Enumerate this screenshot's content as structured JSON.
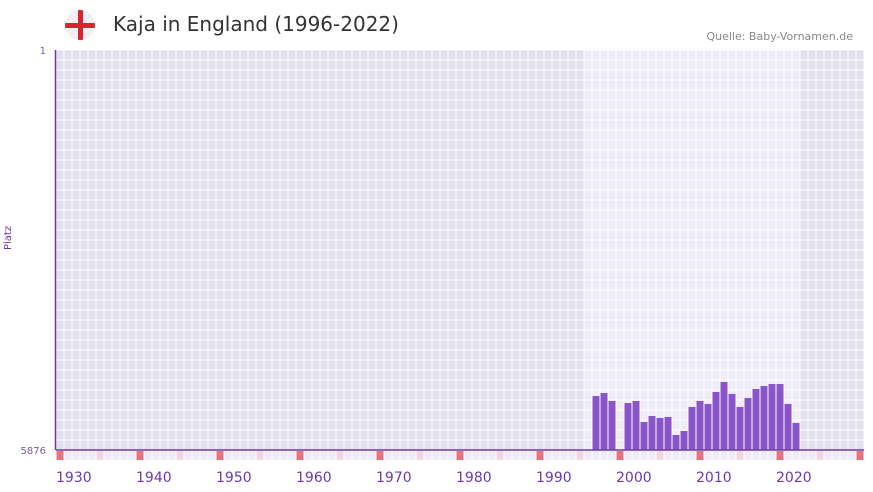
{
  "header": {
    "title": "Kaja in England (1996-2022)",
    "source": "Quelle: Baby-Vornamen.de",
    "flag_icon": "england-flag-icon"
  },
  "colors": {
    "bar": "#8a55c8",
    "bg_dark": "#e3dfec",
    "bg_light": "#efebf9",
    "axis": "#6a3aa8",
    "decade_marker": "#e8737c",
    "half_marker": "#f3d6de"
  },
  "chart_data": {
    "type": "bar",
    "title": "Kaja in England (1996-2022)",
    "xlabel": "",
    "ylabel": "Platz",
    "xlim": [
      1930,
      2030
    ],
    "ylim": [
      5876,
      1
    ],
    "y_inverted": true,
    "y_ticks": [
      "1",
      "5876"
    ],
    "x_ticks": [
      "1930",
      "1940",
      "1950",
      "1960",
      "1970",
      "1980",
      "1990",
      "2000",
      "2010",
      "2020"
    ],
    "highlight_range": [
      1996,
      2022
    ],
    "years": [
      1997,
      1998,
      1999,
      2001,
      2002,
      2003,
      2004,
      2005,
      2006,
      2007,
      2008,
      2009,
      2010,
      2011,
      2012,
      2013,
      2014,
      2015,
      2016,
      2017,
      2018,
      2019,
      2020,
      2021,
      2022
    ],
    "values": [
      5083,
      5039,
      5156,
      5186,
      5156,
      5465,
      5377,
      5406,
      5391,
      5656,
      5597,
      5244,
      5156,
      5200,
      5024,
      4877,
      5053,
      5244,
      5112,
      4980,
      4936,
      4907,
      4907,
      5200,
      5479
    ]
  }
}
